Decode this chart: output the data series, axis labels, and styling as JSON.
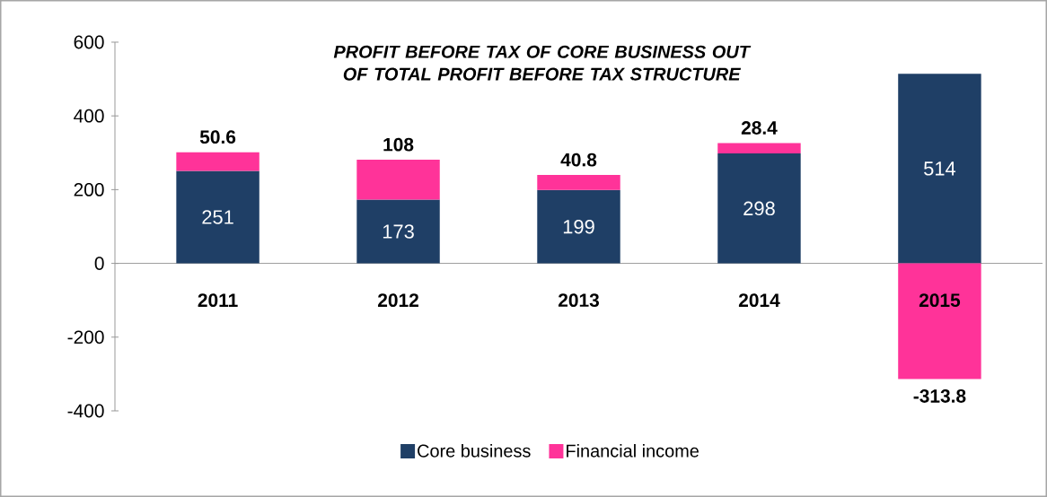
{
  "chart_data": {
    "type": "bar",
    "stacked": true,
    "title": "PROFIT BEFORE TAX  OF CORE BUSINESS OUT OF TOTAL PROFIT BEFORE TAX STRUCTURE",
    "categories": [
      "2011",
      "2012",
      "2013",
      "2014",
      "2015"
    ],
    "series": [
      {
        "name": "Core business",
        "color": "#1f3f66",
        "values": [
          251,
          173,
          199,
          298,
          514
        ]
      },
      {
        "name": "Financial income",
        "color": "#ff3399",
        "values": [
          50.6,
          108,
          40.8,
          28.4,
          -313.8
        ]
      }
    ],
    "ylim": [
      -400,
      600
    ],
    "yticks": [
      -400,
      -200,
      0,
      200,
      400,
      600
    ],
    "data_labels": true,
    "legend": "bottom",
    "grid": false
  }
}
